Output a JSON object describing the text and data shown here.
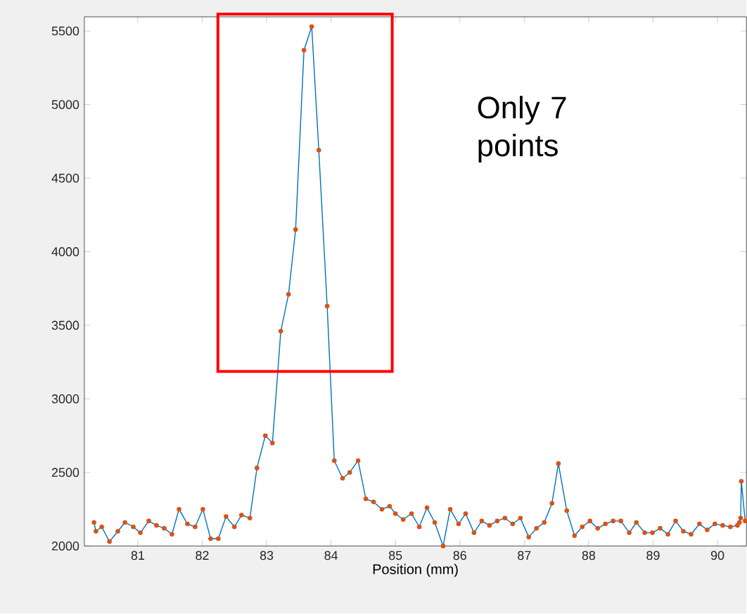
{
  "chart_data": {
    "type": "line",
    "xlabel": "Position (mm)",
    "annotations": [
      "Only 7 points"
    ],
    "xlim": [
      80.17,
      90.45
    ],
    "ylim": [
      2000,
      5596
    ],
    "xticks": [
      81,
      82,
      83,
      84,
      85,
      86,
      87,
      88,
      89,
      90
    ],
    "yticks": [
      2000,
      2500,
      3000,
      3500,
      4000,
      4500,
      5000,
      5500
    ],
    "marker": "circle",
    "line_style": "solid",
    "grid": false,
    "series": [
      {
        "color": "#0072bd",
        "x": [
          80.32,
          80.35,
          80.44,
          80.56,
          80.69,
          80.8,
          80.93,
          81.04,
          81.17,
          81.29,
          81.41,
          81.53,
          81.64,
          81.77,
          81.89,
          82.01,
          82.13,
          82.25,
          82.37,
          82.5,
          82.61,
          82.74,
          82.85,
          82.98,
          83.09,
          83.22,
          83.34,
          83.45,
          83.58,
          83.7,
          83.81,
          83.94,
          84.05,
          84.18,
          84.29,
          84.42,
          84.54,
          84.66,
          84.79,
          84.91,
          85.0,
          85.12,
          85.25,
          85.37,
          85.49,
          85.61,
          85.74,
          85.85,
          85.98,
          86.09,
          86.22,
          86.34,
          86.46,
          86.58,
          86.7,
          86.82,
          86.94,
          87.07,
          87.19,
          87.31,
          87.43,
          87.53,
          87.66,
          87.78,
          87.9,
          88.02,
          88.14,
          88.26,
          88.38,
          88.5,
          88.63,
          88.74,
          88.87,
          88.99,
          89.11,
          89.23,
          89.35,
          89.47,
          89.59,
          89.72,
          89.84,
          89.96,
          90.08,
          90.2,
          90.31,
          90.34,
          90.36,
          90.37,
          90.43
        ],
        "values": [
          2160,
          2100,
          2130,
          2030,
          2100,
          2160,
          2130,
          2090,
          2170,
          2140,
          2120,
          2080,
          2250,
          2150,
          2130,
          2250,
          2050,
          2050,
          2200,
          2130,
          2210,
          2190,
          2530,
          2750,
          2700,
          3460,
          3710,
          4150,
          5370,
          5530,
          4690,
          3630,
          2580,
          2460,
          2500,
          2580,
          2320,
          2300,
          2250,
          2270,
          2220,
          2180,
          2220,
          2130,
          2260,
          2160,
          2000,
          2250,
          2150,
          2220,
          2090,
          2170,
          2140,
          2170,
          2190,
          2150,
          2190,
          2060,
          2120,
          2160,
          2290,
          2560,
          2240,
          2070,
          2130,
          2170,
          2120,
          2150,
          2170,
          2170,
          2090,
          2160,
          2090,
          2090,
          2120,
          2080,
          2170,
          2100,
          2080,
          2150,
          2110,
          2150,
          2140,
          2130,
          2140,
          2160,
          2190,
          2440,
          2170
        ]
      }
    ]
  }
}
